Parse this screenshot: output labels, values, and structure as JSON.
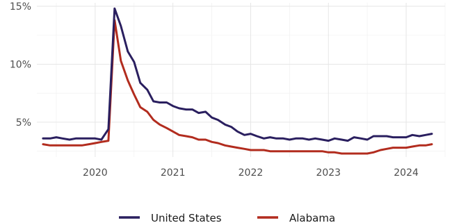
{
  "chart_data": {
    "type": "line",
    "title": "",
    "xlabel": "",
    "ylabel": "",
    "ylim": [
      2.0,
      15.3
    ],
    "xlim": [
      2019.25,
      2024.5
    ],
    "x_ticks": [
      2020,
      2021,
      2022,
      2023,
      2024
    ],
    "x_tick_labels": [
      "2020",
      "2021",
      "2022",
      "2023",
      "2024"
    ],
    "y_ticks": [
      5,
      10,
      15
    ],
    "y_tick_labels": [
      "5%",
      "10%",
      "15%"
    ],
    "grid": true,
    "legend_position": "bottom",
    "series": [
      {
        "name": "United States",
        "color": "#2a1f5f",
        "x": [
          2019.33,
          2019.42,
          2019.5,
          2019.58,
          2019.67,
          2019.75,
          2019.83,
          2019.92,
          2020.0,
          2020.08,
          2020.17,
          2020.25,
          2020.33,
          2020.42,
          2020.5,
          2020.58,
          2020.67,
          2020.75,
          2020.83,
          2020.92,
          2021.0,
          2021.08,
          2021.17,
          2021.25,
          2021.33,
          2021.42,
          2021.5,
          2021.58,
          2021.67,
          2021.75,
          2021.83,
          2021.92,
          2022.0,
          2022.08,
          2022.17,
          2022.25,
          2022.33,
          2022.42,
          2022.5,
          2022.58,
          2022.67,
          2022.75,
          2022.83,
          2022.92,
          2023.0,
          2023.08,
          2023.17,
          2023.25,
          2023.33,
          2023.42,
          2023.5,
          2023.58,
          2023.67,
          2023.75,
          2023.83,
          2023.92,
          2024.0,
          2024.08,
          2024.17,
          2024.25,
          2024.33
        ],
        "y": [
          3.6,
          3.6,
          3.7,
          3.6,
          3.5,
          3.6,
          3.6,
          3.6,
          3.6,
          3.5,
          4.4,
          14.8,
          13.3,
          11.1,
          10.2,
          8.4,
          7.8,
          6.8,
          6.7,
          6.7,
          6.4,
          6.2,
          6.1,
          6.1,
          5.8,
          5.9,
          5.4,
          5.2,
          4.8,
          4.6,
          4.2,
          3.9,
          4.0,
          3.8,
          3.6,
          3.7,
          3.6,
          3.6,
          3.5,
          3.6,
          3.6,
          3.5,
          3.6,
          3.5,
          3.4,
          3.6,
          3.5,
          3.4,
          3.7,
          3.6,
          3.5,
          3.8,
          3.8,
          3.8,
          3.7,
          3.7,
          3.7,
          3.9,
          3.8,
          3.9,
          4.0
        ]
      },
      {
        "name": "Alabama",
        "color": "#b22c1e",
        "x": [
          2019.33,
          2019.42,
          2019.5,
          2019.58,
          2019.67,
          2019.75,
          2019.83,
          2019.92,
          2020.0,
          2020.08,
          2020.17,
          2020.25,
          2020.33,
          2020.42,
          2020.5,
          2020.58,
          2020.67,
          2020.75,
          2020.83,
          2020.92,
          2021.0,
          2021.08,
          2021.17,
          2021.25,
          2021.33,
          2021.42,
          2021.5,
          2021.58,
          2021.67,
          2021.75,
          2021.83,
          2021.92,
          2022.0,
          2022.08,
          2022.17,
          2022.25,
          2022.33,
          2022.42,
          2022.5,
          2022.58,
          2022.67,
          2022.75,
          2022.83,
          2022.92,
          2023.0,
          2023.08,
          2023.17,
          2023.25,
          2023.33,
          2023.42,
          2023.5,
          2023.58,
          2023.67,
          2023.75,
          2023.83,
          2023.92,
          2024.0,
          2024.08,
          2024.17,
          2024.25,
          2024.33
        ],
        "y": [
          3.1,
          3.0,
          3.0,
          3.0,
          3.0,
          3.0,
          3.0,
          3.1,
          3.2,
          3.3,
          3.4,
          13.8,
          10.3,
          8.6,
          7.4,
          6.3,
          5.9,
          5.2,
          4.8,
          4.5,
          4.2,
          3.9,
          3.8,
          3.7,
          3.5,
          3.5,
          3.3,
          3.2,
          3.0,
          2.9,
          2.8,
          2.7,
          2.6,
          2.6,
          2.6,
          2.5,
          2.5,
          2.5,
          2.5,
          2.5,
          2.5,
          2.5,
          2.5,
          2.5,
          2.4,
          2.4,
          2.3,
          2.3,
          2.3,
          2.3,
          2.3,
          2.4,
          2.6,
          2.7,
          2.8,
          2.8,
          2.8,
          2.9,
          3.0,
          3.0,
          3.1
        ]
      }
    ]
  }
}
